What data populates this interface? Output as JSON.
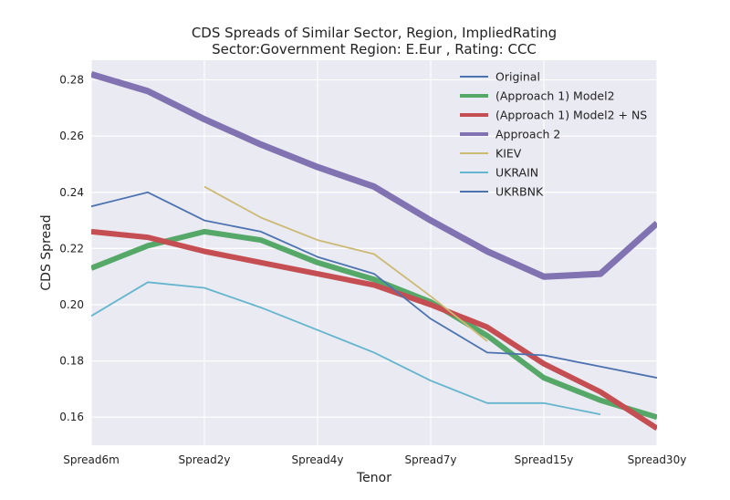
{
  "chart_data": {
    "type": "line",
    "title": "CDS Spreads of Similar Sector, Region, ImpliedRating",
    "subtitle": "Sector:Government Region: E.Eur , Rating: CCC",
    "xlabel": "Tenor",
    "ylabel": "CDS Spread",
    "x_tick_labels": [
      "Spread6m",
      "Spread2y",
      "Spread4y",
      "Spread7y",
      "Spread15y",
      "Spread30y"
    ],
    "x_tick_positions": [
      0,
      2,
      4,
      6,
      8,
      10
    ],
    "xlim": [
      0,
      10
    ],
    "ylim": [
      0.15,
      0.287
    ],
    "y_ticks": [
      0.16,
      0.18,
      0.2,
      0.22,
      0.24,
      0.26,
      0.28
    ],
    "y_tick_labels": [
      "0.16",
      "0.18",
      "0.20",
      "0.22",
      "0.24",
      "0.26",
      "0.28"
    ],
    "grid": true,
    "legend_position": "top-right",
    "background": "#eaeaf2",
    "series": [
      {
        "name": "Original",
        "color": "#4c72b0",
        "width": 1.8,
        "x": [
          0,
          1,
          2,
          3,
          4,
          5,
          6,
          7,
          8,
          9,
          10
        ],
        "values": [
          0.235,
          0.24,
          0.23,
          0.226,
          0.217,
          0.211,
          0.195,
          0.183,
          0.182,
          0.178,
          0.174
        ]
      },
      {
        "name": "(Approach 1) Model2",
        "color": "#55a868",
        "width": 6,
        "x": [
          0,
          1,
          2,
          3,
          4,
          5,
          6,
          7,
          8,
          9,
          10
        ],
        "values": [
          0.213,
          0.221,
          0.226,
          0.223,
          0.215,
          0.209,
          0.201,
          0.189,
          0.174,
          0.166,
          0.16
        ]
      },
      {
        "name": "(Approach 1) Model2 + NS",
        "color": "#c44e52",
        "width": 6,
        "x": [
          0,
          1,
          2,
          3,
          4,
          5,
          6,
          7,
          8,
          9,
          10
        ],
        "values": [
          0.226,
          0.224,
          0.219,
          0.215,
          0.211,
          0.207,
          0.2,
          0.192,
          0.179,
          0.169,
          0.156
        ]
      },
      {
        "name": "Approach 2",
        "color": "#8172b2",
        "width": 7,
        "x": [
          0,
          1,
          2,
          3,
          4,
          5,
          6,
          7,
          8,
          9,
          10
        ],
        "values": [
          0.282,
          0.276,
          0.266,
          0.257,
          0.249,
          0.242,
          0.23,
          0.219,
          0.21,
          0.211,
          0.229
        ]
      },
      {
        "name": "KIEV",
        "color": "#ccb974",
        "width": 1.8,
        "x": [
          2,
          3,
          4,
          5,
          6,
          7
        ],
        "values": [
          0.242,
          0.231,
          0.223,
          0.218,
          0.203,
          0.187
        ]
      },
      {
        "name": "UKRAIN",
        "color": "#64b5cd",
        "width": 1.8,
        "x": [
          0,
          1,
          2,
          3,
          4,
          5,
          6,
          7,
          8,
          9
        ],
        "values": [
          0.196,
          0.208,
          0.206,
          0.199,
          0.191,
          0.183,
          0.173,
          0.165,
          0.165,
          0.161
        ]
      },
      {
        "name": "UKRBNK",
        "color": "#4c72b0",
        "width": 1.8,
        "x": [],
        "values": []
      }
    ]
  }
}
